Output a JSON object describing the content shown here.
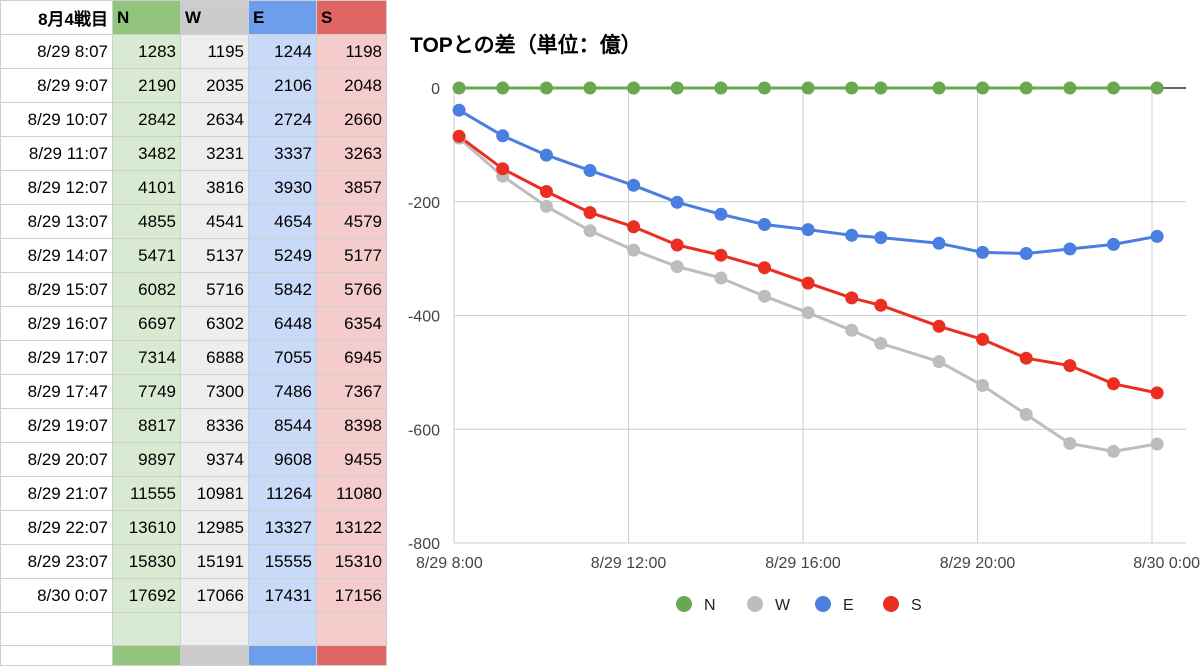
{
  "table": {
    "header": [
      "8月4戦目",
      "N",
      "W",
      "E",
      "S"
    ],
    "rows": [
      [
        "8/29 8:07",
        "1283",
        "1195",
        "1244",
        "1198"
      ],
      [
        "8/29 9:07",
        "2190",
        "2035",
        "2106",
        "2048"
      ],
      [
        "8/29 10:07",
        "2842",
        "2634",
        "2724",
        "2660"
      ],
      [
        "8/29 11:07",
        "3482",
        "3231",
        "3337",
        "3263"
      ],
      [
        "8/29 12:07",
        "4101",
        "3816",
        "3930",
        "3857"
      ],
      [
        "8/29 13:07",
        "4855",
        "4541",
        "4654",
        "4579"
      ],
      [
        "8/29 14:07",
        "5471",
        "5137",
        "5249",
        "5177"
      ],
      [
        "8/29 15:07",
        "6082",
        "5716",
        "5842",
        "5766"
      ],
      [
        "8/29 16:07",
        "6697",
        "6302",
        "6448",
        "6354"
      ],
      [
        "8/29 17:07",
        "7314",
        "6888",
        "7055",
        "6945"
      ],
      [
        "8/29 17:47",
        "7749",
        "7300",
        "7486",
        "7367"
      ],
      [
        "8/29 19:07",
        "8817",
        "8336",
        "8544",
        "8398"
      ],
      [
        "8/29 20:07",
        "9897",
        "9374",
        "9608",
        "9455"
      ],
      [
        "8/29 21:07",
        "11555",
        "10981",
        "11264",
        "11080"
      ],
      [
        "8/29 22:07",
        "13610",
        "12985",
        "13327",
        "13122"
      ],
      [
        "8/29 23:07",
        "15830",
        "15191",
        "15555",
        "15310"
      ],
      [
        "8/30 0:07",
        "17692",
        "17066",
        "17431",
        "17156"
      ]
    ]
  },
  "chart_data": {
    "type": "line",
    "title": "TOPとの差（単位：億）",
    "xlabel": "",
    "ylabel": "",
    "x_unit": "hours",
    "xlim": [
      8,
      24.55
    ],
    "ylim": [
      -800,
      0
    ],
    "yticks": [
      0,
      -200,
      -400,
      -600,
      -800
    ],
    "xticks": [
      {
        "value": 8,
        "label": "8/29 8:00"
      },
      {
        "value": 12,
        "label": "8/29 12:00"
      },
      {
        "value": 16,
        "label": "8/29 16:00"
      },
      {
        "value": 20,
        "label": "8/29 20:00"
      },
      {
        "value": 24,
        "label": "8/30 0:00"
      }
    ],
    "grid": true,
    "legend_position": "bottom",
    "x": [
      8.117,
      9.117,
      10.117,
      11.117,
      12.117,
      13.117,
      14.117,
      15.117,
      16.117,
      17.117,
      17.783,
      19.117,
      20.117,
      21.117,
      22.117,
      23.117,
      24.117
    ],
    "series": [
      {
        "name": "N",
        "color": "#6aa84f",
        "values": [
          0,
          0,
          0,
          0,
          0,
          0,
          0,
          0,
          0,
          0,
          0,
          0,
          0,
          0,
          0,
          0,
          0
        ]
      },
      {
        "name": "W",
        "color": "#bdbdbd",
        "values": [
          -88,
          -155,
          -208,
          -251,
          -285,
          -314,
          -334,
          -366,
          -395,
          -426,
          -449,
          -481,
          -523,
          -574,
          -625,
          -639,
          -626
        ]
      },
      {
        "name": "E",
        "color": "#4a7ee0",
        "values": [
          -39,
          -84,
          -118,
          -145,
          -171,
          -201,
          -222,
          -240,
          -249,
          -259,
          -263,
          -273,
          -289,
          -291,
          -283,
          -275,
          -261
        ]
      },
      {
        "name": "S",
        "color": "#ea2f22",
        "values": [
          -85,
          -142,
          -182,
          -219,
          -244,
          -276,
          -294,
          -316,
          -343,
          -369,
          -382,
          -419,
          -442,
          -475,
          -488,
          -520,
          -536
        ]
      }
    ]
  }
}
